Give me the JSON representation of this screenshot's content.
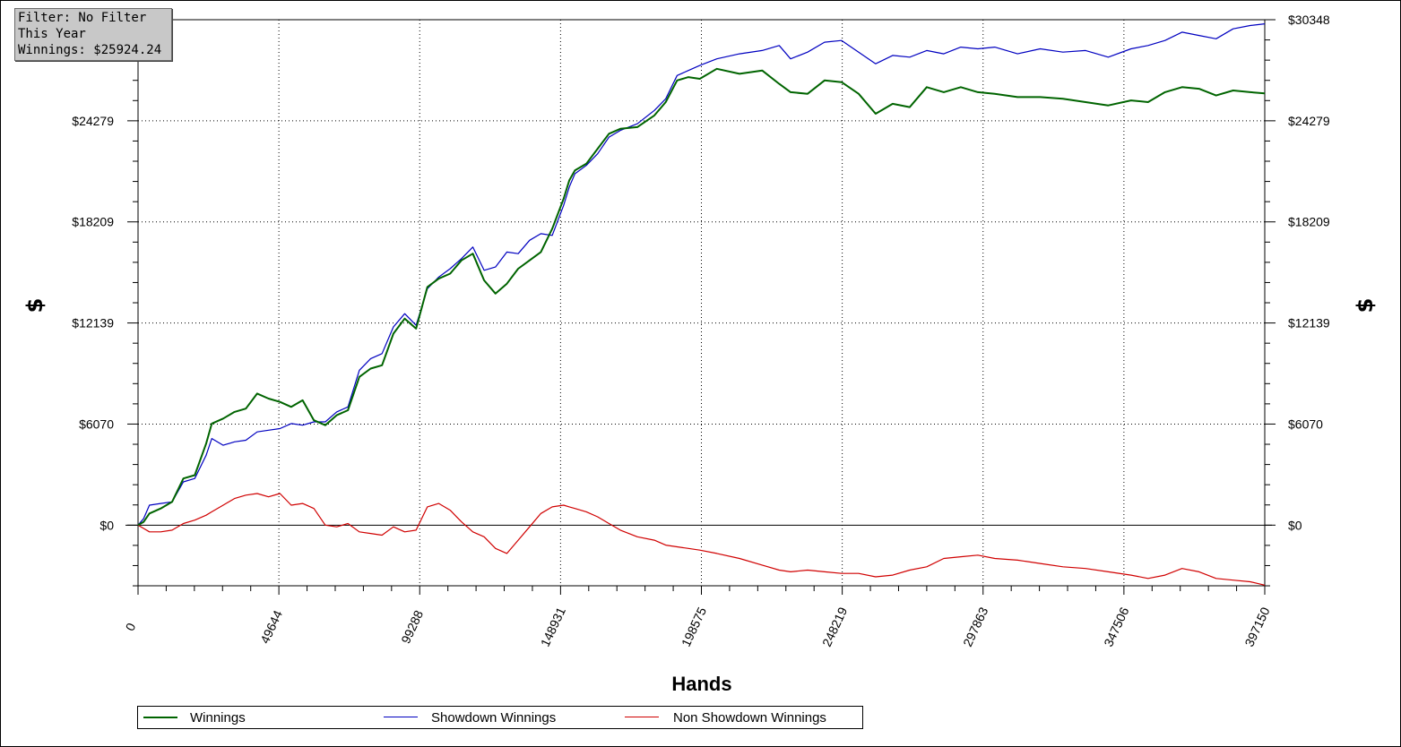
{
  "filter_box": {
    "line1": "Filter: No Filter",
    "line2": "This Year",
    "line3": "Winnings: $25924.24"
  },
  "legend": {
    "items": [
      {
        "label": "Winnings",
        "color": "#006400"
      },
      {
        "label": "Showdown Winnings",
        "color": "#0000c0"
      },
      {
        "label": "Non Showdown Winnings",
        "color": "#d00000"
      }
    ]
  },
  "chart_data": {
    "type": "line",
    "title": "",
    "xlabel": "Hands",
    "ylabel": "$",
    "ylabel_right": "$",
    "xlim": [
      0,
      397150
    ],
    "ylim": [
      -3640,
      30348
    ],
    "x_ticks": [
      "0",
      "49644",
      "99288",
      "148931",
      "198575",
      "248219",
      "297863",
      "347506",
      "397150"
    ],
    "y_ticks_left": [
      "$0",
      "$6070",
      "$12139",
      "$18209",
      "$24279"
    ],
    "y_ticks_right": [
      "$0",
      "$6070",
      "$12139",
      "$18209",
      "$24279",
      "$30348"
    ],
    "grid": true,
    "legend_position": "bottom",
    "series": [
      {
        "name": "Winnings",
        "color": "#006400",
        "x": [
          0,
          2000,
          4000,
          8000,
          12000,
          16000,
          20000,
          24000,
          26000,
          30000,
          34000,
          38000,
          42000,
          46000,
          50000,
          54000,
          58000,
          62000,
          66000,
          70000,
          74000,
          78000,
          82000,
          86000,
          90000,
          94000,
          98000,
          102000,
          106000,
          110000,
          114000,
          118000,
          122000,
          126000,
          130000,
          134000,
          138000,
          142000,
          146000,
          150000,
          152000,
          154000,
          158000,
          162000,
          166000,
          170000,
          176000,
          182000,
          186000,
          190000,
          194000,
          198000,
          204000,
          212000,
          220000,
          226000,
          230000,
          236000,
          242000,
          248000,
          254000,
          260000,
          266000,
          272000,
          278000,
          284000,
          290000,
          296000,
          302000,
          310000,
          318000,
          326000,
          334000,
          342000,
          350000,
          356000,
          362000,
          368000,
          374000,
          380000,
          386000,
          392000,
          397150
        ],
        "y": [
          0,
          200,
          700,
          1000,
          1400,
          2800,
          3000,
          4900,
          6100,
          6400,
          6800,
          7000,
          7900,
          7600,
          7400,
          7100,
          7500,
          6300,
          6000,
          6600,
          6900,
          8900,
          9400,
          9600,
          11500,
          12400,
          11800,
          14300,
          14800,
          15100,
          15900,
          16300,
          14700,
          13900,
          14500,
          15400,
          15900,
          16400,
          17800,
          19600,
          20700,
          21300,
          21700,
          22600,
          23500,
          23800,
          23900,
          24600,
          25400,
          26700,
          26900,
          26800,
          27400,
          27100,
          27300,
          26500,
          26000,
          25900,
          26700,
          26600,
          25900,
          24700,
          25300,
          25100,
          26300,
          26000,
          26300,
          26000,
          25900,
          25700,
          25700,
          25600,
          25400,
          25200,
          25500,
          25400,
          26000,
          26300,
          26200,
          25800,
          26100,
          26000,
          25924
        ]
      },
      {
        "name": "Showdown Winnings",
        "color": "#0000c0",
        "x": [
          0,
          2000,
          4000,
          8000,
          12000,
          16000,
          20000,
          24000,
          26000,
          30000,
          34000,
          38000,
          42000,
          46000,
          50000,
          54000,
          58000,
          62000,
          66000,
          70000,
          74000,
          78000,
          82000,
          86000,
          90000,
          94000,
          98000,
          102000,
          106000,
          110000,
          114000,
          118000,
          122000,
          126000,
          130000,
          134000,
          138000,
          142000,
          146000,
          150000,
          152000,
          154000,
          158000,
          162000,
          166000,
          170000,
          176000,
          182000,
          186000,
          190000,
          194000,
          198000,
          204000,
          212000,
          220000,
          226000,
          230000,
          236000,
          242000,
          248000,
          254000,
          260000,
          266000,
          272000,
          278000,
          284000,
          290000,
          296000,
          302000,
          310000,
          318000,
          326000,
          334000,
          342000,
          350000,
          356000,
          362000,
          368000,
          374000,
          380000,
          386000,
          392000,
          397150
        ],
        "y": [
          0,
          400,
          1200,
          1300,
          1400,
          2600,
          2800,
          4200,
          5200,
          4800,
          5000,
          5100,
          5600,
          5700,
          5800,
          6100,
          6000,
          6200,
          6200,
          6800,
          7100,
          9300,
          10000,
          10300,
          11900,
          12700,
          12000,
          14200,
          14900,
          15400,
          16000,
          16700,
          15300,
          15500,
          16400,
          16300,
          17100,
          17500,
          17400,
          19200,
          20300,
          21100,
          21600,
          22300,
          23300,
          23700,
          24100,
          24900,
          25600,
          27000,
          27300,
          27600,
          28000,
          28300,
          28500,
          28800,
          28000,
          28400,
          29000,
          29100,
          28400,
          27700,
          28200,
          28100,
          28500,
          28300,
          28700,
          28600,
          28700,
          28300,
          28600,
          28400,
          28500,
          28100,
          28600,
          28800,
          29100,
          29600,
          29400,
          29200,
          29800,
          30000,
          30100
        ]
      },
      {
        "name": "Non Showdown Winnings",
        "color": "#d00000",
        "x": [
          0,
          2000,
          4000,
          8000,
          12000,
          16000,
          20000,
          24000,
          26000,
          30000,
          34000,
          38000,
          42000,
          46000,
          50000,
          54000,
          58000,
          62000,
          66000,
          70000,
          74000,
          78000,
          82000,
          86000,
          90000,
          94000,
          98000,
          102000,
          106000,
          110000,
          114000,
          118000,
          122000,
          126000,
          130000,
          134000,
          138000,
          142000,
          146000,
          150000,
          152000,
          154000,
          158000,
          162000,
          166000,
          170000,
          176000,
          182000,
          186000,
          190000,
          194000,
          198000,
          204000,
          212000,
          220000,
          226000,
          230000,
          236000,
          242000,
          248000,
          254000,
          260000,
          266000,
          272000,
          278000,
          284000,
          290000,
          296000,
          302000,
          310000,
          318000,
          326000,
          334000,
          342000,
          350000,
          356000,
          362000,
          368000,
          374000,
          380000,
          386000,
          392000,
          397150
        ],
        "y": [
          0,
          -200,
          -400,
          -400,
          -300,
          100,
          300,
          600,
          800,
          1200,
          1600,
          1800,
          1900,
          1700,
          1900,
          1200,
          1300,
          1000,
          0,
          -100,
          100,
          -400,
          -500,
          -600,
          -100,
          -400,
          -300,
          1100,
          1300,
          900,
          200,
          -400,
          -700,
          -1400,
          -1700,
          -900,
          -100,
          700,
          1100,
          1200,
          1100,
          1000,
          800,
          500,
          100,
          -300,
          -700,
          -900,
          -1200,
          -1300,
          -1400,
          -1500,
          -1700,
          -2000,
          -2400,
          -2700,
          -2800,
          -2700,
          -2800,
          -2900,
          -2900,
          -3100,
          -3000,
          -2700,
          -2500,
          -2000,
          -1900,
          -1800,
          -2000,
          -2100,
          -2300,
          -2500,
          -2600,
          -2800,
          -3000,
          -3200,
          -3000,
          -2600,
          -2800,
          -3200,
          -3300,
          -3400,
          -3600
        ]
      }
    ]
  }
}
